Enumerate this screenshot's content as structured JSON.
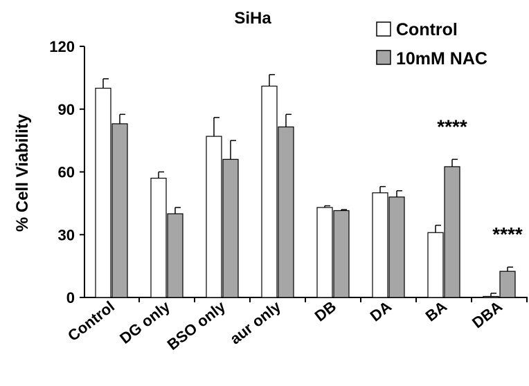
{
  "chart_data": {
    "type": "bar",
    "title": "SiHa",
    "ylabel": "% Cell Viability",
    "xlabel": "",
    "ylim": [
      0,
      120
    ],
    "yticks": [
      0,
      30,
      60,
      90,
      120
    ],
    "categories": [
      "Control",
      "DG only",
      "BSO only",
      "aur only",
      "DB",
      "DA",
      "BA",
      "DBA"
    ],
    "series": [
      {
        "name": "Control",
        "color": "#ffffff",
        "values": [
          100,
          57,
          77,
          101,
          43,
          50,
          31,
          0.5
        ],
        "errors": [
          4.5,
          3,
          9,
          5.5,
          0.8,
          3,
          3.5,
          1.5
        ]
      },
      {
        "name": "10mM NAC",
        "color": "#a6a6a6",
        "values": [
          83,
          40,
          66,
          81.5,
          41.5,
          48,
          62.5,
          12.5
        ],
        "errors": [
          4.5,
          3,
          9,
          6,
          0.5,
          3,
          3.5,
          2
        ]
      }
    ],
    "annotations": [
      {
        "category": "BA",
        "text": "****"
      },
      {
        "category": "DBA",
        "text": "****"
      }
    ],
    "legend_position": "top-right",
    "grid": false
  }
}
